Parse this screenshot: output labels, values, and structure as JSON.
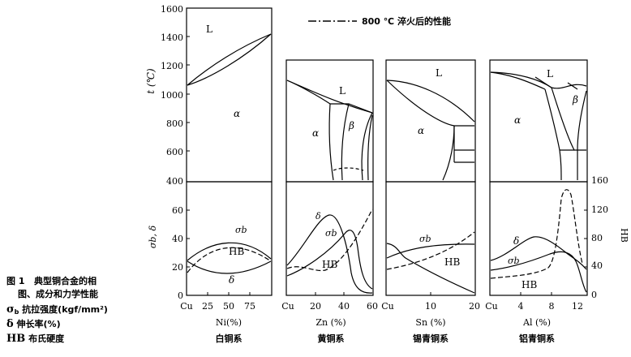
{
  "legend": {
    "quench_label": "800 ℃ 淬火后的性能"
  },
  "caption": {
    "figure_label": "图 1",
    "title_line1": "典型铜合金的相",
    "title_line2": "图、成分和力学性能",
    "sigma_symbol": "σ",
    "sigma_subscript": "b",
    "sigma_desc": "抗拉强度(kgf/mm²)",
    "delta_symbol": "δ",
    "delta_desc": "伸长率(%)",
    "hb_symbol": "HB",
    "hb_desc": "布氏硬度"
  },
  "axes": {
    "temp_label": "t (℃)",
    "temp_ticks": [
      "1600",
      "1400",
      "1200",
      "1000",
      "800",
      "600",
      "400"
    ],
    "prop_ticks": [
      "60",
      "40",
      "20",
      "0"
    ],
    "prop_label": "σb, δ",
    "hb_label": "HB",
    "hb_ticks": [
      "160",
      "120",
      "80",
      "40",
      "0"
    ]
  },
  "systems": [
    {
      "name": "白铜系",
      "xlabel": "Ni(%)",
      "xticks": [
        "Cu",
        "25",
        "50",
        "75"
      ],
      "phase_labels": [
        "L",
        "α"
      ],
      "curve_labels": [
        "σb",
        "HB",
        "δ"
      ]
    },
    {
      "name": "黄铜系",
      "xlabel": "Zn (%)",
      "xticks": [
        "Cu",
        "20",
        "40",
        "60"
      ],
      "phase_labels": [
        "L",
        "α",
        "β"
      ],
      "curve_labels": [
        "δ",
        "σb",
        "HB"
      ]
    },
    {
      "name": "锡青铜系",
      "xlabel": "Sn (%)",
      "xticks": [
        "Cu",
        "10",
        "20"
      ],
      "phase_labels": [
        "L",
        "α"
      ],
      "curve_labels": [
        "σb",
        "HB"
      ]
    },
    {
      "name": "铝青铜系",
      "xlabel": "Al (%)",
      "xticks": [
        "Cu",
        "4",
        "8",
        "12"
      ],
      "phase_labels": [
        "L",
        "α",
        "β"
      ],
      "curve_labels": [
        "δ",
        "σb",
        "HB"
      ]
    }
  ]
}
